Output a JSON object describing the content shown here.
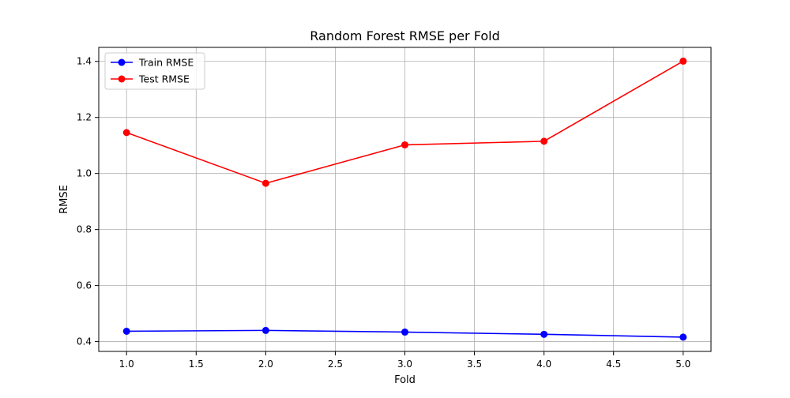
{
  "chart_data": {
    "type": "line",
    "title": "Random Forest RMSE per Fold",
    "xlabel": "Fold",
    "ylabel": "RMSE",
    "x": [
      1,
      2,
      3,
      4,
      5
    ],
    "xlim": [
      0.8,
      5.2
    ],
    "ylim": [
      0.365,
      1.45
    ],
    "xticks": [
      "1.0",
      "1.5",
      "2.0",
      "2.5",
      "3.0",
      "3.5",
      "4.0",
      "4.5",
      "5.0"
    ],
    "yticks": [
      "0.4",
      "0.6",
      "0.8",
      "1.0",
      "1.2",
      "1.4"
    ],
    "grid": true,
    "legend_position": "top-left",
    "series": [
      {
        "name": "Train RMSE",
        "color": "#0000ff",
        "values": [
          0.437,
          0.44,
          0.434,
          0.426,
          0.416
        ]
      },
      {
        "name": "Test RMSE",
        "color": "#ff0000",
        "values": [
          1.146,
          0.965,
          1.102,
          1.115,
          1.401
        ]
      }
    ]
  }
}
